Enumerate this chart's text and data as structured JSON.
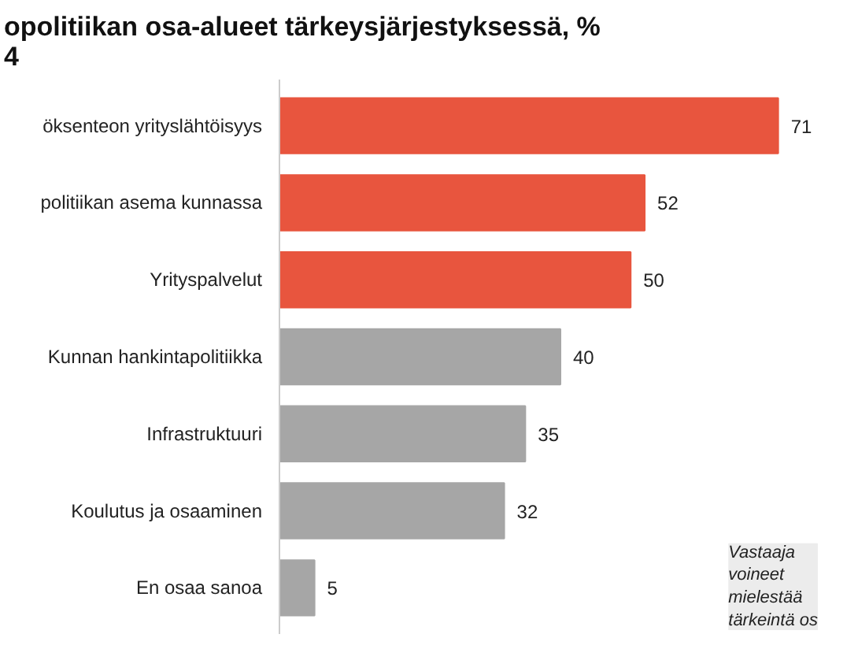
{
  "chart_data": {
    "type": "bar",
    "orientation": "horizontal",
    "title": "opolitiikan osa-alueet tärkeysjärjestyksessä, %\n4",
    "categories": [
      "öksenteon yrityslähtöisyys",
      "politiikan asema kunnassa",
      "Yrityspalvelut",
      "Kunnan hankintapolitiikka",
      "Infrastruktuuri",
      "Koulutus ja osaaminen",
      "En osaa sanoa"
    ],
    "values": [
      71,
      52,
      50,
      40,
      35,
      32,
      5
    ],
    "colors": [
      "#e8553e",
      "#e8553e",
      "#e8553e",
      "#a6a6a6",
      "#a6a6a6",
      "#a6a6a6",
      "#a6a6a6"
    ],
    "data_labels": true,
    "annotations": [
      "Vastaaja\nvoineet\nmielestää\ntärkeintä os"
    ]
  }
}
